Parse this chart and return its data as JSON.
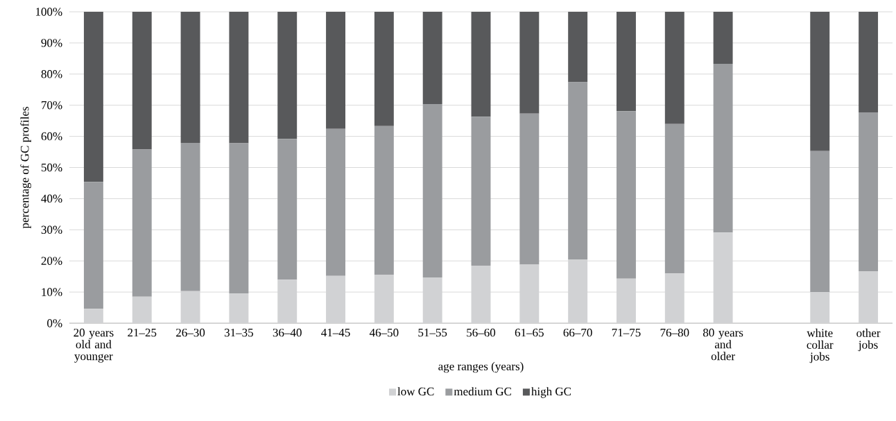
{
  "chart_data": {
    "type": "bar",
    "stacked": true,
    "xlabel": "age ranges (years)",
    "ylabel": "percentage of GC profiles",
    "categories": [
      "20 years old and younger",
      "21–25",
      "26–30",
      "31–35",
      "36–40",
      "41–45",
      "46–50",
      "51–55",
      "56–60",
      "61–65",
      "66–70",
      "71–75",
      "76–80",
      "80 years and older",
      null,
      "white collar jobs",
      "other jobs"
    ],
    "series": [
      {
        "name": "low GC",
        "color": "#d1d2d4",
        "values": [
          4.6,
          8.5,
          10.3,
          9.5,
          14.0,
          15.2,
          15.6,
          14.7,
          18.5,
          18.8,
          20.5,
          14.3,
          16.0,
          29.1,
          null,
          10.0,
          16.7
        ]
      },
      {
        "name": "medium GC",
        "color": "#9a9c9f",
        "values": [
          40.8,
          47.3,
          47.6,
          48.3,
          45.2,
          47.2,
          47.7,
          55.7,
          47.8,
          48.5,
          56.9,
          53.8,
          48.0,
          54.2,
          null,
          45.3,
          51.0
        ]
      },
      {
        "name": "high GC",
        "color": "#58595b",
        "values": [
          54.6,
          44.2,
          42.1,
          42.2,
          40.8,
          37.6,
          36.7,
          29.6,
          33.7,
          32.7,
          22.6,
          31.9,
          36.0,
          16.7,
          null,
          44.7,
          32.3
        ]
      }
    ],
    "ylim": [
      0,
      100
    ],
    "yticks": [
      {
        "value": 0,
        "label": "0%"
      },
      {
        "value": 10,
        "label": "10%"
      },
      {
        "value": 20,
        "label": "20%"
      },
      {
        "value": 30,
        "label": "30%"
      },
      {
        "value": 40,
        "label": "40%"
      },
      {
        "value": 50,
        "label": "50%"
      },
      {
        "value": 60,
        "label": "60%"
      },
      {
        "value": 70,
        "label": "70%"
      },
      {
        "value": 80,
        "label": "80%"
      },
      {
        "value": 90,
        "label": "90%"
      },
      {
        "value": 100,
        "label": "100%"
      }
    ],
    "grid": "y",
    "legend": "bottom"
  }
}
